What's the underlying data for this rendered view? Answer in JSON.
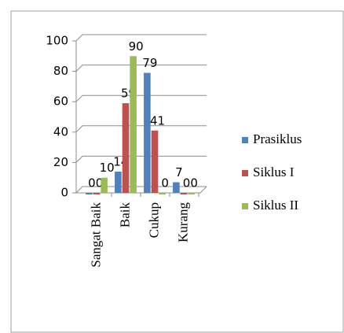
{
  "chart_data": {
    "type": "bar",
    "categories": [
      "Sangat Baik",
      "Baik",
      "Cukup",
      "Kurang"
    ],
    "series": [
      {
        "name": "Prasiklus",
        "color": "#4f81bd",
        "values": [
          0,
          14,
          79,
          7
        ]
      },
      {
        "name": "Siklus I",
        "color": "#c0504d",
        "values": [
          0,
          59,
          41,
          0
        ]
      },
      {
        "name": "Siklus II",
        "color": "#9bbb59",
        "values": [
          10,
          90,
          0,
          0
        ]
      }
    ],
    "ylim": [
      0,
      100
    ],
    "yticks": [
      0,
      20,
      40,
      60,
      80,
      100
    ],
    "grid": true,
    "legend": "right"
  }
}
